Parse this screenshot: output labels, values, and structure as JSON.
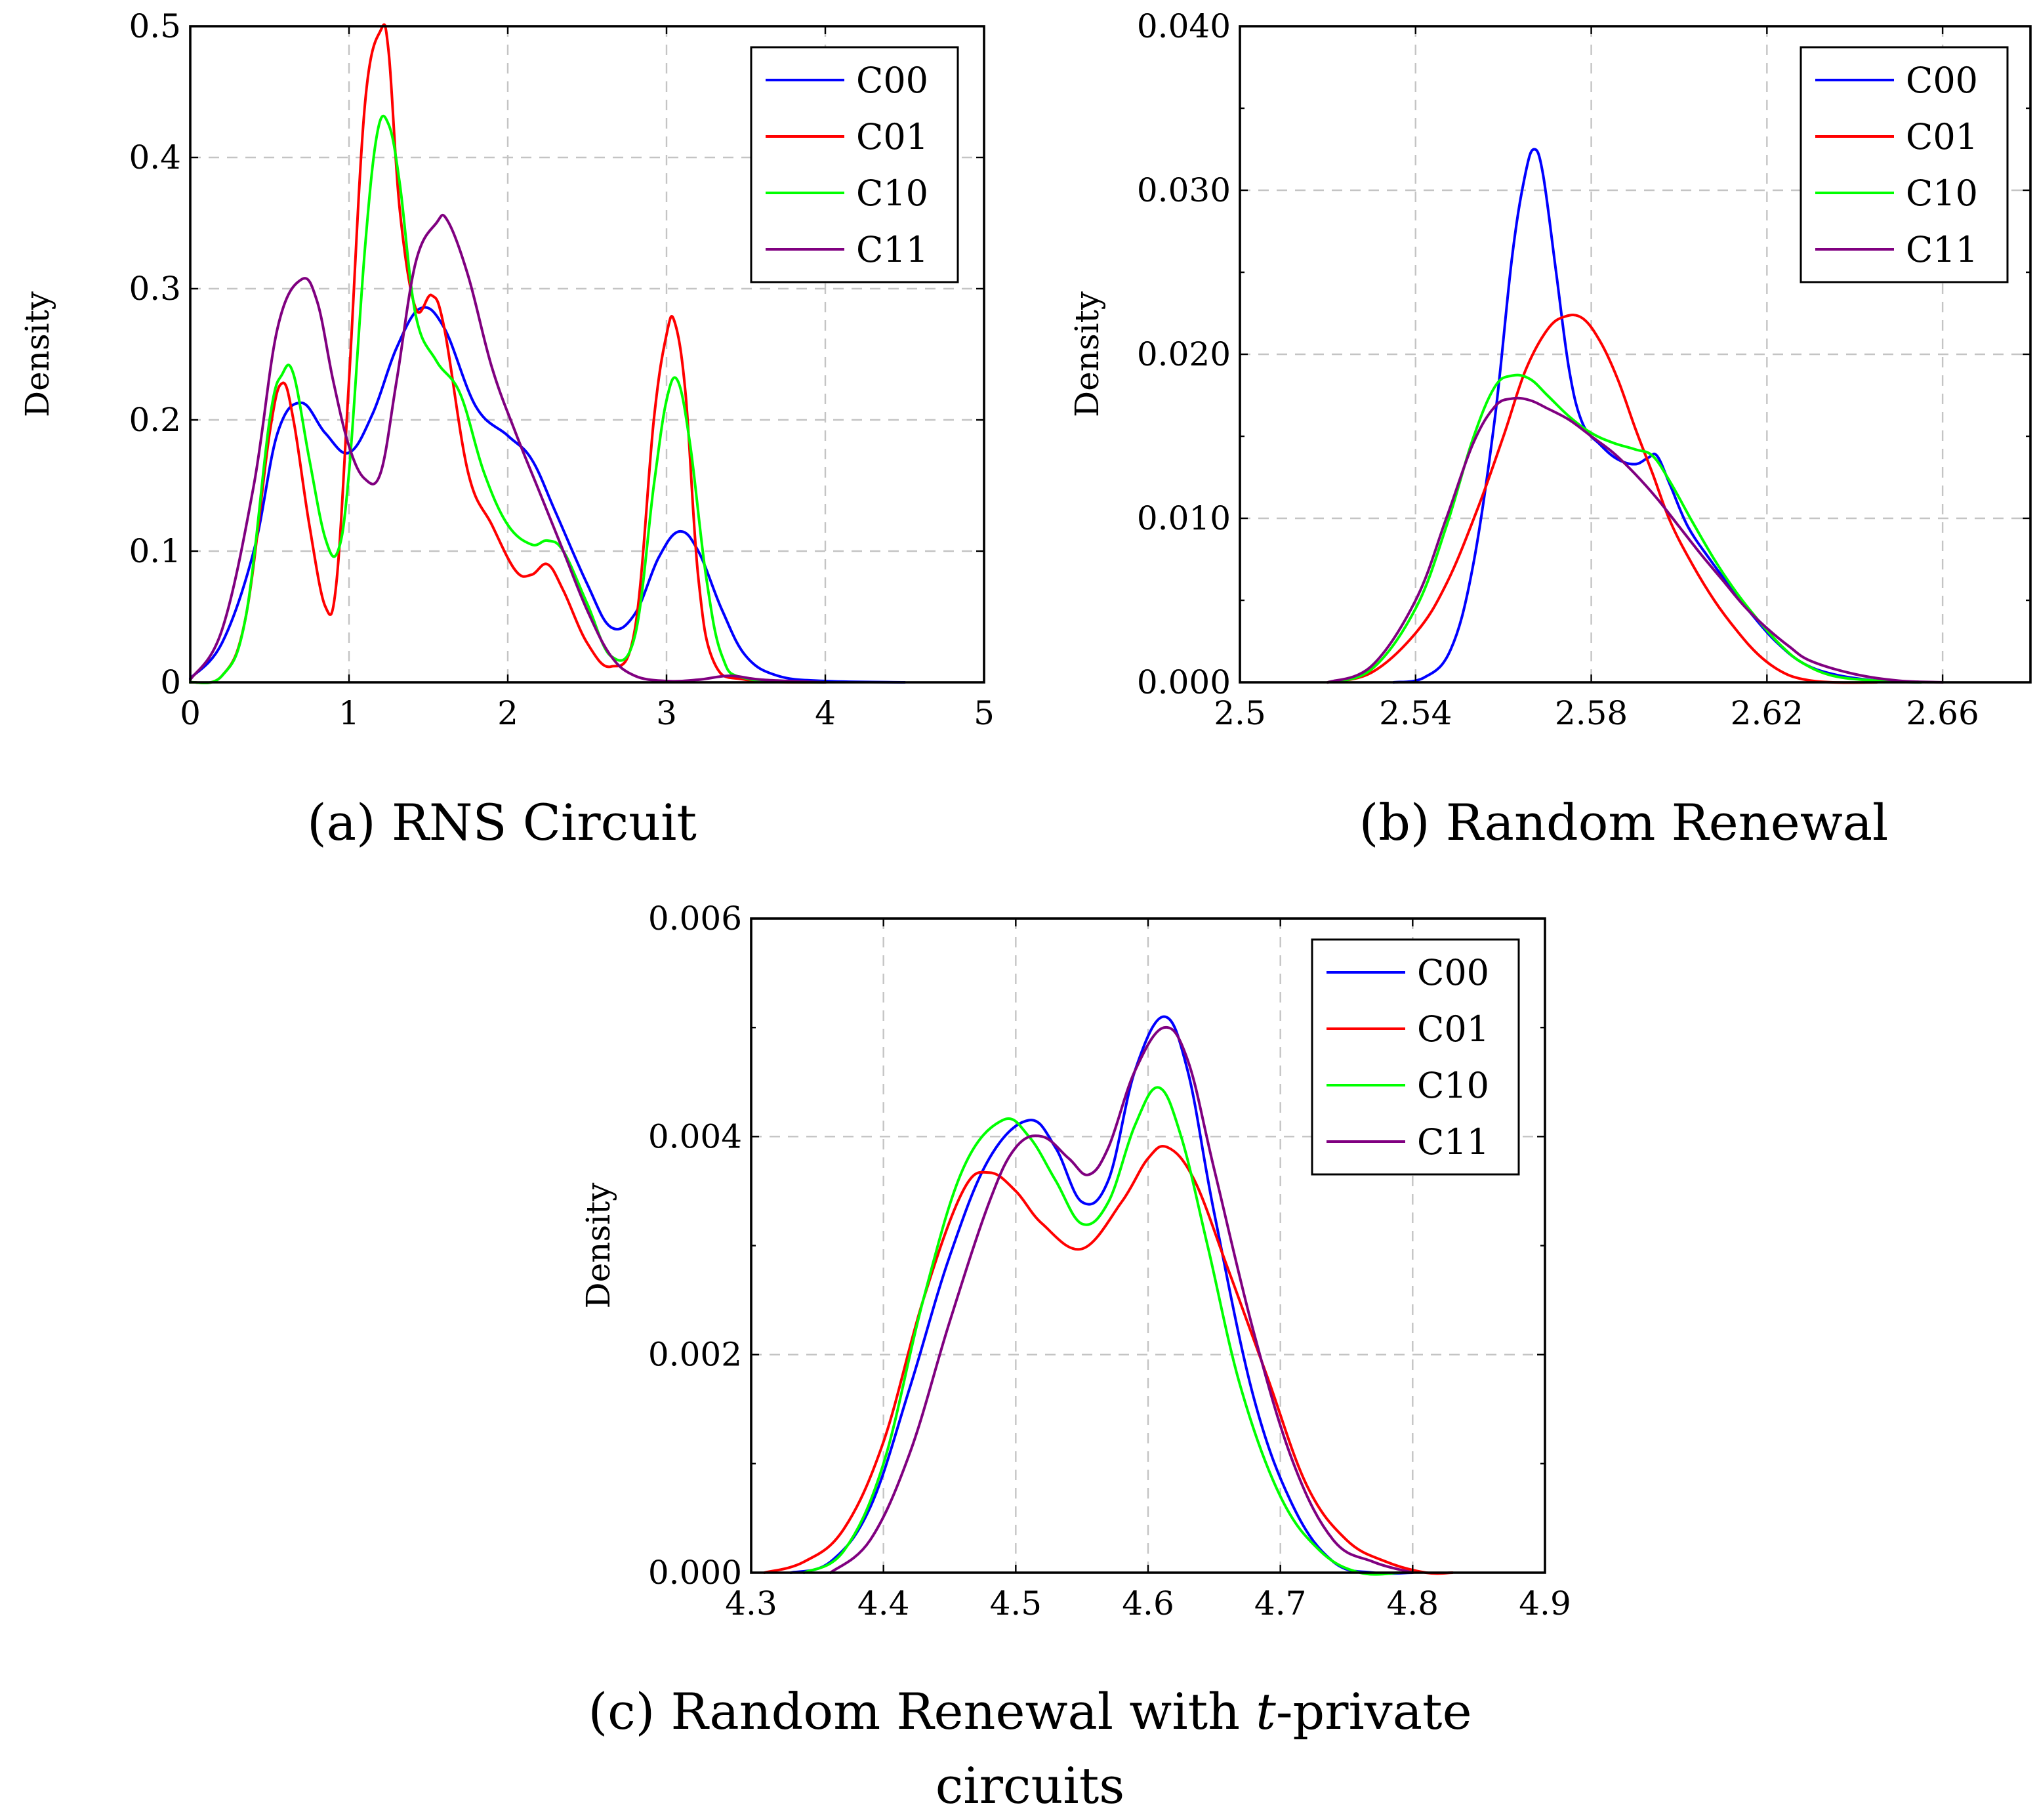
{
  "colors": {
    "C00": "#0000ff",
    "C01": "#ff0000",
    "C10": "#00ff00",
    "C11": "#800080"
  },
  "chart_data": [
    {
      "id": "a",
      "type": "line",
      "title": "",
      "caption": [
        "(a) RNS Circuit"
      ],
      "xlabel": "",
      "ylabel": "Density",
      "xlim": [
        0,
        5
      ],
      "ylim": [
        0,
        0.5
      ],
      "xticks": [
        0,
        1,
        2,
        3,
        4,
        5
      ],
      "xtick_labels": [
        "0",
        "1",
        "2",
        "3",
        "4",
        "5"
      ],
      "yticks": [
        0,
        0.1,
        0.2,
        0.3,
        0.4,
        0.5
      ],
      "ytick_labels": [
        "0",
        "0.1",
        "0.2",
        "0.3",
        "0.4",
        "0.5"
      ],
      "minor_yticks": [],
      "grid": true,
      "legend_position": "top-right",
      "legend": [
        "C00",
        "C01",
        "C10",
        "C11"
      ],
      "series": [
        {
          "name": "C00",
          "x": [
            0,
            0.2,
            0.4,
            0.55,
            0.7,
            0.85,
            1.0,
            1.15,
            1.3,
            1.45,
            1.6,
            1.8,
            2.0,
            2.15,
            2.3,
            2.5,
            2.65,
            2.8,
            2.95,
            3.08,
            3.2,
            3.35,
            3.5,
            3.7,
            4.0,
            4.5
          ],
          "y": [
            0.003,
            0.03,
            0.1,
            0.19,
            0.213,
            0.19,
            0.175,
            0.205,
            0.255,
            0.285,
            0.27,
            0.21,
            0.188,
            0.17,
            0.13,
            0.075,
            0.042,
            0.052,
            0.095,
            0.115,
            0.1,
            0.055,
            0.02,
            0.005,
            0.001,
            0
          ]
        },
        {
          "name": "C01",
          "x": [
            0,
            0.2,
            0.35,
            0.5,
            0.58,
            0.65,
            0.75,
            0.85,
            0.92,
            1.0,
            1.1,
            1.2,
            1.25,
            1.32,
            1.42,
            1.52,
            1.6,
            1.75,
            1.9,
            2.05,
            2.15,
            2.25,
            2.35,
            2.5,
            2.65,
            2.8,
            2.92,
            3.0,
            3.05,
            3.12,
            3.2,
            3.3,
            3.5,
            4.0
          ],
          "y": [
            0,
            0.005,
            0.05,
            0.19,
            0.228,
            0.2,
            0.12,
            0.058,
            0.075,
            0.23,
            0.44,
            0.497,
            0.48,
            0.36,
            0.285,
            0.295,
            0.27,
            0.16,
            0.12,
            0.085,
            0.082,
            0.09,
            0.07,
            0.03,
            0.012,
            0.04,
            0.2,
            0.265,
            0.275,
            0.22,
            0.08,
            0.015,
            0.002,
            0
          ]
        },
        {
          "name": "C10",
          "x": [
            0,
            0.2,
            0.35,
            0.5,
            0.58,
            0.65,
            0.75,
            0.85,
            0.93,
            1.0,
            1.1,
            1.18,
            1.25,
            1.32,
            1.42,
            1.55,
            1.7,
            1.85,
            2.0,
            2.15,
            2.25,
            2.35,
            2.5,
            2.65,
            2.8,
            2.92,
            3.0,
            3.07,
            3.15,
            3.25,
            3.35,
            3.5,
            4.0
          ],
          "y": [
            0,
            0.005,
            0.05,
            0.2,
            0.235,
            0.235,
            0.17,
            0.11,
            0.1,
            0.16,
            0.33,
            0.42,
            0.425,
            0.38,
            0.28,
            0.245,
            0.22,
            0.16,
            0.12,
            0.105,
            0.108,
            0.1,
            0.06,
            0.02,
            0.035,
            0.15,
            0.215,
            0.23,
            0.18,
            0.08,
            0.02,
            0.003,
            0
          ]
        },
        {
          "name": "C11",
          "x": [
            0,
            0.2,
            0.4,
            0.55,
            0.7,
            0.8,
            0.9,
            1.0,
            1.1,
            1.2,
            1.3,
            1.42,
            1.55,
            1.62,
            1.75,
            1.9,
            2.05,
            2.2,
            2.35,
            2.5,
            2.65,
            2.8,
            3.0,
            3.2,
            3.4,
            3.6,
            4.0
          ],
          "y": [
            0.002,
            0.04,
            0.15,
            0.27,
            0.307,
            0.29,
            0.23,
            0.18,
            0.155,
            0.16,
            0.23,
            0.32,
            0.35,
            0.352,
            0.31,
            0.24,
            0.19,
            0.145,
            0.1,
            0.055,
            0.02,
            0.005,
            0.001,
            0.002,
            0.005,
            0.002,
            0
          ]
        }
      ]
    },
    {
      "id": "b",
      "type": "line",
      "title": "",
      "caption": [
        "(b) Random Renewal"
      ],
      "xlabel": "",
      "ylabel": "Density",
      "xlim": [
        2.5,
        2.68
      ],
      "ylim": [
        0,
        0.04
      ],
      "xticks": [
        2.5,
        2.54,
        2.58,
        2.62,
        2.66
      ],
      "xtick_labels": [
        "2.5",
        "2.54",
        "2.58",
        "2.62",
        "2.66"
      ],
      "yticks": [
        0,
        0.01,
        0.02,
        0.03,
        0.04
      ],
      "ytick_labels": [
        "0.000",
        "0.010",
        "0.020",
        "0.030",
        "0.040"
      ],
      "minor_yticks": [
        0.005,
        0.015,
        0.025,
        0.035
      ],
      "grid": true,
      "legend_position": "top-right",
      "legend": [
        "C00",
        "C01",
        "C10",
        "C11"
      ],
      "series": [
        {
          "name": "C00",
          "x": [
            2.535,
            2.542,
            2.548,
            2.553,
            2.558,
            2.562,
            2.565,
            2.567,
            2.569,
            2.572,
            2.575,
            2.578,
            2.582,
            2.586,
            2.59,
            2.593,
            2.595,
            2.598,
            2.602,
            2.607,
            2.612,
            2.617,
            2.622,
            2.628,
            2.635,
            2.645,
            2.655
          ],
          "y": [
            0,
            0.0003,
            0.002,
            0.007,
            0.016,
            0.026,
            0.031,
            0.0325,
            0.031,
            0.025,
            0.019,
            0.0158,
            0.0145,
            0.0136,
            0.0133,
            0.0137,
            0.0138,
            0.012,
            0.0095,
            0.0075,
            0.0057,
            0.004,
            0.0025,
            0.0012,
            0.0005,
            0.0001,
            0
          ]
        },
        {
          "name": "C01",
          "x": [
            2.52,
            2.53,
            2.54,
            2.547,
            2.554,
            2.56,
            2.565,
            2.57,
            2.574,
            2.578,
            2.582,
            2.586,
            2.59,
            2.594,
            2.598,
            2.603,
            2.608,
            2.613,
            2.618,
            2.623,
            2.628,
            2.635,
            2.645
          ],
          "y": [
            0,
            0.0006,
            0.003,
            0.006,
            0.0105,
            0.015,
            0.019,
            0.0215,
            0.0223,
            0.0222,
            0.0208,
            0.0185,
            0.0155,
            0.0127,
            0.0098,
            0.0072,
            0.005,
            0.0032,
            0.0017,
            0.0007,
            0.0002,
            0,
            0
          ]
        },
        {
          "name": "C10",
          "x": [
            2.52,
            2.53,
            2.54,
            2.547,
            2.553,
            2.558,
            2.562,
            2.566,
            2.57,
            2.575,
            2.58,
            2.585,
            2.59,
            2.594,
            2.598,
            2.603,
            2.608,
            2.613,
            2.618,
            2.623,
            2.628,
            2.635,
            2.645,
            2.655
          ],
          "y": [
            0,
            0.0008,
            0.0045,
            0.0095,
            0.0148,
            0.018,
            0.0187,
            0.0185,
            0.0175,
            0.0162,
            0.0152,
            0.0146,
            0.0142,
            0.0138,
            0.0122,
            0.0098,
            0.0075,
            0.0055,
            0.0038,
            0.0023,
            0.0012,
            0.0004,
            0.0001,
            0
          ]
        },
        {
          "name": "C11",
          "x": [
            2.52,
            2.53,
            2.54,
            2.547,
            2.553,
            2.558,
            2.562,
            2.566,
            2.57,
            2.575,
            2.58,
            2.585,
            2.59,
            2.595,
            2.6,
            2.605,
            2.61,
            2.615,
            2.62,
            2.625,
            2.63,
            2.64,
            2.65,
            2.66
          ],
          "y": [
            0,
            0.001,
            0.005,
            0.01,
            0.0145,
            0.0168,
            0.0173,
            0.0172,
            0.0167,
            0.016,
            0.015,
            0.014,
            0.0127,
            0.0112,
            0.0095,
            0.0078,
            0.0062,
            0.0046,
            0.0033,
            0.0022,
            0.0013,
            0.0005,
            0.0001,
            0
          ]
        }
      ]
    },
    {
      "id": "c",
      "type": "line",
      "title": "",
      "caption": [
        "(c) Random Renewal with t-private",
        "circuits"
      ],
      "xlabel": "",
      "ylabel": "Density",
      "xlim": [
        4.3,
        4.9
      ],
      "ylim": [
        0,
        0.006
      ],
      "xticks": [
        4.3,
        4.4,
        4.5,
        4.6,
        4.7,
        4.8,
        4.9
      ],
      "xtick_labels": [
        "4.3",
        "4.4",
        "4.5",
        "4.6",
        "4.7",
        "4.8",
        "4.9"
      ],
      "yticks": [
        0,
        0.002,
        0.004,
        0.006
      ],
      "ytick_labels": [
        "0.000",
        "0.002",
        "0.004",
        "0.006"
      ],
      "minor_yticks": [
        0.001,
        0.003,
        0.005
      ],
      "grid": true,
      "legend_position": "top-right",
      "legend": [
        "C00",
        "C01",
        "C10",
        "C11"
      ],
      "series": [
        {
          "name": "C00",
          "x": [
            4.33,
            4.36,
            4.39,
            4.42,
            4.45,
            4.48,
            4.51,
            4.53,
            4.55,
            4.57,
            4.59,
            4.612,
            4.63,
            4.65,
            4.68,
            4.71,
            4.74,
            4.77,
            4.8
          ],
          "y": [
            0,
            0.0001,
            0.0006,
            0.0017,
            0.0029,
            0.0038,
            0.00415,
            0.0039,
            0.0034,
            0.0036,
            0.0046,
            0.0051,
            0.0046,
            0.0033,
            0.0016,
            0.0006,
            0.0001,
            0,
            0
          ]
        },
        {
          "name": "C01",
          "x": [
            4.31,
            4.34,
            4.37,
            4.4,
            4.43,
            4.46,
            4.48,
            4.5,
            4.52,
            4.55,
            4.58,
            4.6,
            4.615,
            4.635,
            4.66,
            4.69,
            4.72,
            4.75,
            4.78,
            4.81,
            4.83
          ],
          "y": [
            0,
            0.0001,
            0.0004,
            0.0012,
            0.0025,
            0.0035,
            0.00367,
            0.0035,
            0.0032,
            0.00297,
            0.0034,
            0.0038,
            0.0039,
            0.0036,
            0.0028,
            0.0018,
            0.0008,
            0.0003,
            0.0001,
            0,
            0
          ]
        },
        {
          "name": "C10",
          "x": [
            4.34,
            4.37,
            4.4,
            4.43,
            4.46,
            4.49,
            4.51,
            4.53,
            4.55,
            4.57,
            4.59,
            4.608,
            4.625,
            4.645,
            4.67,
            4.7,
            4.73,
            4.76,
            4.79
          ],
          "y": [
            0,
            0.0002,
            0.001,
            0.0025,
            0.0037,
            0.00415,
            0.004,
            0.0036,
            0.0032,
            0.0034,
            0.0041,
            0.00445,
            0.004,
            0.003,
            0.0017,
            0.0007,
            0.0002,
            0,
            0
          ]
        },
        {
          "name": "C11",
          "x": [
            4.36,
            4.39,
            4.42,
            4.45,
            4.48,
            4.5,
            4.52,
            4.54,
            4.555,
            4.57,
            4.59,
            4.612,
            4.63,
            4.65,
            4.68,
            4.71,
            4.74,
            4.77,
            4.8
          ],
          "y": [
            0,
            0.0003,
            0.0011,
            0.0023,
            0.0034,
            0.0039,
            0.004,
            0.0038,
            0.00365,
            0.0039,
            0.0046,
            0.005,
            0.0047,
            0.0037,
            0.0022,
            0.001,
            0.0003,
            0.0001,
            0
          ]
        }
      ]
    }
  ]
}
